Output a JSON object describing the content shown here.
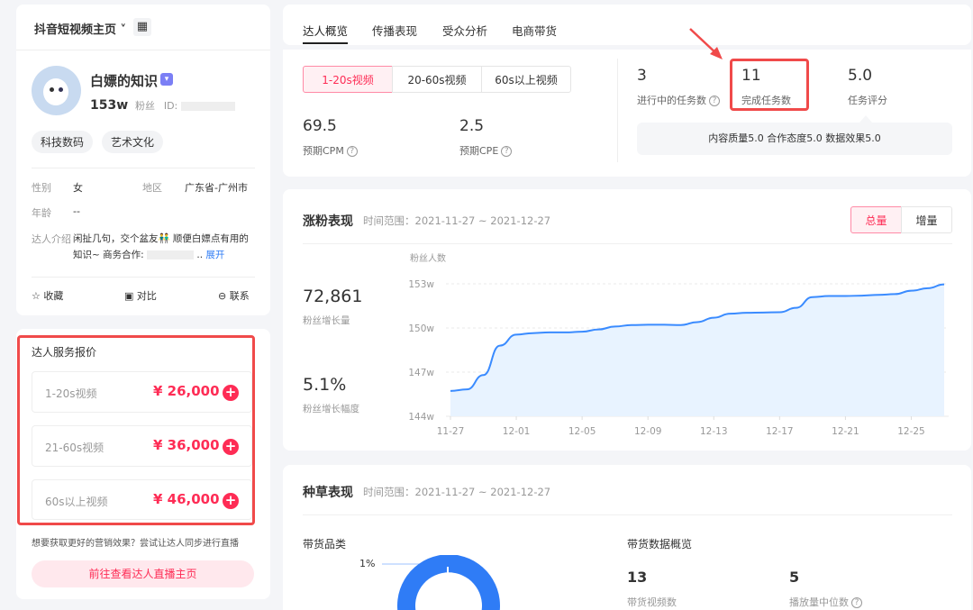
{
  "profile_card": {
    "platform_selector": "抖音短视频主页",
    "name": "白嫖的知识",
    "followers": "153w",
    "followers_label": "粉丝",
    "id_label": "ID:",
    "tags": [
      "科技数码",
      "艺术文化"
    ],
    "gender_label": "性别",
    "gender": "女",
    "region_label": "地区",
    "region": "广东省-广州市",
    "age_label": "年龄",
    "age": "--",
    "intro_label": "达人介绍",
    "intro_line1": "闲扯几句，交个盆友👬 顺便白嫖点有用的",
    "intro_line2": "知识~ 商务合作:",
    "intro_ellipsis": "..",
    "expand": "展开",
    "actions": {
      "favorite": "收藏",
      "compare": "对比",
      "contact": "联系"
    }
  },
  "price_card": {
    "title": "达人服务报价",
    "items": [
      {
        "label": "1-20s视频",
        "price": "¥ 26,000"
      },
      {
        "label": "21-60s视频",
        "price": "¥ 36,000"
      },
      {
        "label": "60s以上视频",
        "price": "¥ 46,000"
      }
    ],
    "tip": "想要获取更好的营销效果？尝试让达人同步进行直播",
    "live_button": "前往查看达人直播主页"
  },
  "tabs": [
    "达人概览",
    "传播表现",
    "受众分析",
    "电商带货"
  ],
  "active_tab": 0,
  "overview": {
    "segments": [
      "1-20s视频",
      "20-60s视频",
      "60s以上视频"
    ],
    "cpm": {
      "value": "69.5",
      "label": "预期CPM"
    },
    "cpe": {
      "value": "2.5",
      "label": "预期CPE"
    },
    "tasks_in_progress": {
      "value": "3",
      "label": "进行中的任务数"
    },
    "tasks_done": {
      "value": "11",
      "label": "完成任务数"
    },
    "task_score": {
      "value": "5.0",
      "label": "任务评分"
    },
    "score_detail": "内容质量5.0 合作态度5.0 数据效果5.0"
  },
  "fans": {
    "title": "涨粉表现",
    "range": "时间范围：2021-11-27 ~ 2021-12-27",
    "toggle": [
      "总量",
      "增量"
    ],
    "growth": {
      "value": "72,861",
      "label": "粉丝增长量"
    },
    "rate": {
      "value": "5.1%",
      "label": "粉丝增长幅度"
    }
  },
  "chart_data": {
    "type": "area",
    "ylabel": "粉丝人数",
    "ylim": [
      144,
      153
    ],
    "yticks": [
      "144w",
      "147w",
      "150w",
      "153w"
    ],
    "ytick_values": [
      144,
      147,
      150,
      153
    ],
    "xtick_labels": [
      "11-27",
      "12-01",
      "12-05",
      "12-09",
      "12-13",
      "12-17",
      "12-21",
      "12-25"
    ],
    "x": [
      "11-27",
      "11-28",
      "11-29",
      "11-30",
      "12-01",
      "12-02",
      "12-03",
      "12-04",
      "12-05",
      "12-06",
      "12-07",
      "12-08",
      "12-09",
      "12-10",
      "12-11",
      "12-12",
      "12-13",
      "12-14",
      "12-15",
      "12-16",
      "12-17",
      "12-18",
      "12-19",
      "12-20",
      "12-21",
      "12-22",
      "12-23",
      "12-24",
      "12-25",
      "12-26",
      "12-27"
    ],
    "values": [
      145.72,
      145.83,
      146.8,
      148.8,
      149.55,
      149.65,
      149.7,
      149.7,
      149.75,
      149.9,
      150.1,
      150.2,
      150.22,
      150.22,
      150.2,
      150.4,
      150.7,
      150.97,
      151.03,
      151.05,
      151.07,
      151.37,
      152.1,
      152.17,
      152.17,
      152.2,
      152.25,
      152.3,
      152.53,
      152.7,
      152.96
    ],
    "color": "#3a8bff",
    "grid": true
  },
  "grass": {
    "title": "种草表现",
    "range": "时间范围：2021-11-27 ~ 2021-12-27",
    "category_title": "带货品类",
    "donut_label_pct": "1%",
    "overview_title": "带货数据概览",
    "video_count": {
      "value": "13",
      "label": "带货视频数"
    },
    "play_median": {
      "value": "5",
      "label": "播放量中位数"
    }
  },
  "colors": {
    "accent": "#fe2c55",
    "highlight_box": "#f04a4a",
    "chart": "#3a8bff"
  }
}
